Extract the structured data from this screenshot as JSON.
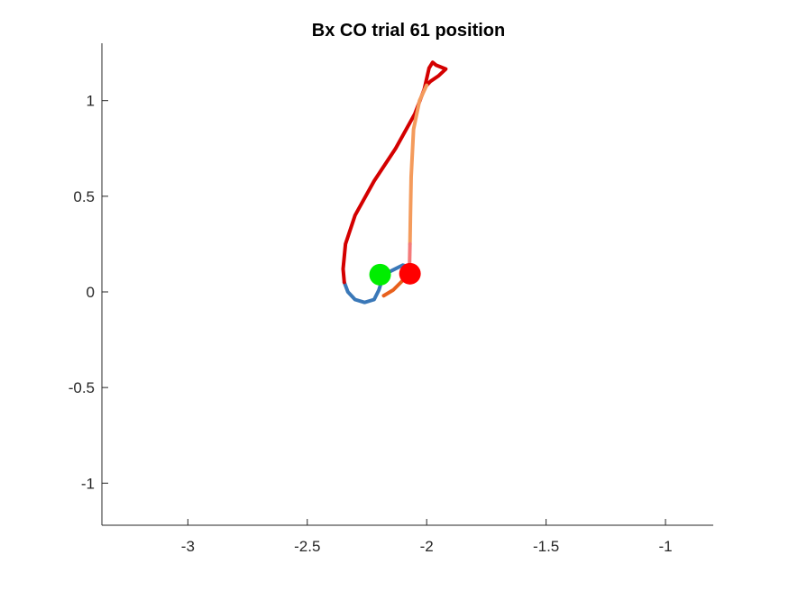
{
  "chart_data": {
    "type": "line",
    "title": "Bx  CO trial 61 position",
    "xlabel": "",
    "ylabel": "",
    "xlim": [
      -3.36,
      -0.8
    ],
    "ylim": [
      -1.22,
      1.3
    ],
    "x_ticks": [
      -3,
      -2.5,
      -2,
      -1.5,
      -1
    ],
    "x_tick_labels": [
      "-3",
      "-2.5",
      "-2",
      "-1.5",
      "-1"
    ],
    "y_ticks": [
      -1,
      -0.5,
      0,
      0.5,
      1
    ],
    "y_tick_labels": [
      "-1",
      "-0.5",
      "0",
      "0.5",
      "1"
    ],
    "grid": false,
    "box": "left-bottom",
    "series": [
      {
        "color": "#3a78b8",
        "points": [
          [
            -2.18,
            0.09
          ],
          [
            -2.2,
            0.01
          ],
          [
            -2.22,
            -0.04
          ],
          [
            -2.26,
            -0.055
          ],
          [
            -2.3,
            -0.04
          ],
          [
            -2.33,
            0.0
          ],
          [
            -2.345,
            0.05
          ]
        ]
      },
      {
        "color": "#d40000",
        "points": [
          [
            -2.345,
            0.05
          ],
          [
            -2.35,
            0.12
          ],
          [
            -2.34,
            0.25
          ],
          [
            -2.3,
            0.4
          ],
          [
            -2.22,
            0.58
          ],
          [
            -2.13,
            0.75
          ],
          [
            -2.05,
            0.93
          ],
          [
            -2.01,
            1.06
          ],
          [
            -1.99,
            1.17
          ],
          [
            -1.975,
            1.2
          ],
          [
            -1.96,
            1.185
          ],
          [
            -1.92,
            1.165
          ],
          [
            -1.95,
            1.13
          ],
          [
            -1.985,
            1.1
          ],
          [
            -2.0,
            1.08
          ]
        ]
      },
      {
        "color": "#f49b5c",
        "points": [
          [
            -2.0,
            1.08
          ],
          [
            -2.03,
            1.0
          ],
          [
            -2.055,
            0.85
          ],
          [
            -2.065,
            0.6
          ],
          [
            -2.068,
            0.4
          ],
          [
            -2.07,
            0.25
          ]
        ]
      },
      {
        "color": "#f47a7a",
        "points": [
          [
            -2.07,
            0.25
          ],
          [
            -2.072,
            0.13
          ]
        ]
      },
      {
        "color": "#e8601c",
        "points": [
          [
            -2.072,
            0.13
          ],
          [
            -2.1,
            0.06
          ],
          [
            -2.14,
            0.01
          ],
          [
            -2.18,
            -0.02
          ]
        ]
      },
      {
        "color": "#3a78b8",
        "points": [
          [
            -2.072,
            0.13
          ],
          [
            -2.1,
            0.14
          ],
          [
            -2.14,
            0.115
          ],
          [
            -2.18,
            0.09
          ]
        ]
      }
    ],
    "markers": [
      {
        "x": -2.195,
        "y": 0.09,
        "color": "#00ee00"
      },
      {
        "x": -2.07,
        "y": 0.095,
        "color": "#ff0000"
      }
    ]
  }
}
